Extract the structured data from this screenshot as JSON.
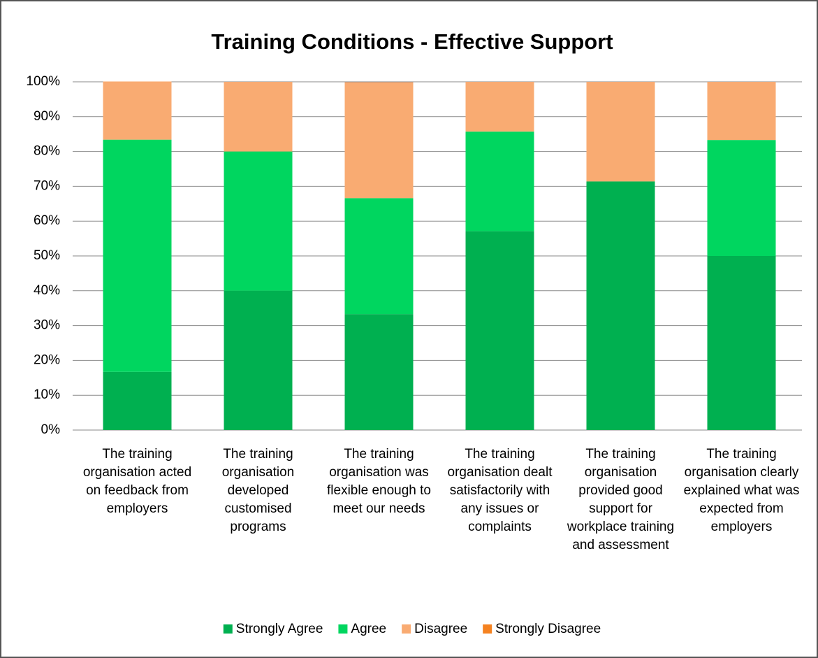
{
  "chart_data": {
    "type": "stacked_bar",
    "title": "Training Conditions - Effective Support",
    "categories": [
      "The training organisation acted on feedback from employers",
      "The training organisation developed customised programs",
      "The training organisation was flexible enough to meet our needs",
      "The training organisation dealt satisfactorily with any issues or complaints",
      "The training organisation provided good support for workplace training and assessment",
      "The training organisation clearly explained what was expected from employers"
    ],
    "series": [
      {
        "name": "Strongly Agree",
        "color": "#00b050",
        "values": [
          16.7,
          40,
          33.3,
          57.1,
          71.4,
          50
        ]
      },
      {
        "name": "Agree",
        "color": "#00d65f",
        "values": [
          66.7,
          40,
          33.3,
          28.6,
          0,
          33.3
        ]
      },
      {
        "name": "Disagree",
        "color": "#f9ab72",
        "values": [
          16.7,
          20,
          33.3,
          14.3,
          28.6,
          16.7
        ]
      },
      {
        "name": "Strongly Disagree",
        "color": "#f58220",
        "values": [
          0,
          0,
          0,
          0,
          0,
          0
        ]
      }
    ],
    "ylim": [
      0,
      100
    ],
    "yticks": [
      {
        "value": 0,
        "label": "0%"
      },
      {
        "value": 10,
        "label": "10%"
      },
      {
        "value": 20,
        "label": "20%"
      },
      {
        "value": 30,
        "label": "30%"
      },
      {
        "value": 40,
        "label": "40%"
      },
      {
        "value": 50,
        "label": "50%"
      },
      {
        "value": 60,
        "label": "60%"
      },
      {
        "value": 70,
        "label": "70%"
      },
      {
        "value": 80,
        "label": "80%"
      },
      {
        "value": 90,
        "label": "90%"
      },
      {
        "value": 100,
        "label": "100%"
      }
    ],
    "grid": true,
    "legend": "bottom"
  }
}
